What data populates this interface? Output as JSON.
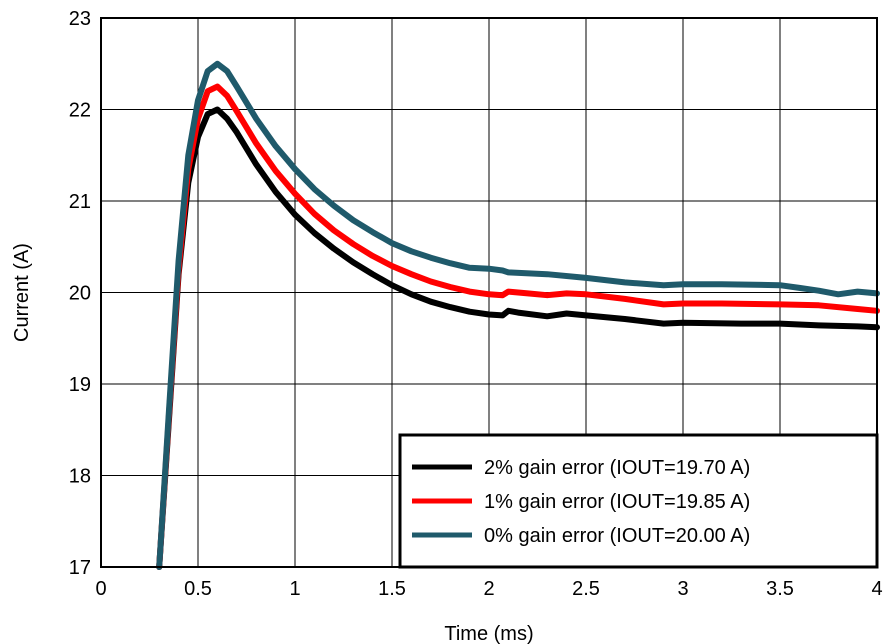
{
  "chart_data": {
    "type": "line",
    "title": "",
    "xlabel": "Time (ms)",
    "ylabel": "Current (A)",
    "xlim": [
      0,
      4
    ],
    "ylim": [
      17,
      23
    ],
    "x_ticks": [
      0,
      0.5,
      1,
      1.5,
      2,
      2.5,
      3,
      3.5,
      4
    ],
    "x_tick_labels": [
      "0",
      "0.5",
      "1",
      "1.5",
      "2",
      "2.5",
      "3",
      "3.5",
      "4"
    ],
    "y_ticks": [
      17,
      18,
      19,
      20,
      21,
      22,
      23
    ],
    "y_tick_labels": [
      "17",
      "18",
      "19",
      "20",
      "21",
      "22",
      "23"
    ],
    "grid": true,
    "legend_position": "bottom-right",
    "series": [
      {
        "name": "2% gain error (IOUT=19.70 A)",
        "color": "#000000",
        "points": [
          [
            0.3,
            17.0
          ],
          [
            0.35,
            18.6
          ],
          [
            0.4,
            20.2
          ],
          [
            0.45,
            21.2
          ],
          [
            0.5,
            21.7
          ],
          [
            0.55,
            21.95
          ],
          [
            0.6,
            22.0
          ],
          [
            0.65,
            21.9
          ],
          [
            0.7,
            21.75
          ],
          [
            0.8,
            21.4
          ],
          [
            0.9,
            21.1
          ],
          [
            1.0,
            20.85
          ],
          [
            1.1,
            20.65
          ],
          [
            1.2,
            20.48
          ],
          [
            1.3,
            20.33
          ],
          [
            1.4,
            20.2
          ],
          [
            1.5,
            20.08
          ],
          [
            1.6,
            19.98
          ],
          [
            1.7,
            19.9
          ],
          [
            1.8,
            19.84
          ],
          [
            1.9,
            19.79
          ],
          [
            2.0,
            19.76
          ],
          [
            2.07,
            19.75
          ],
          [
            2.1,
            19.8
          ],
          [
            2.15,
            19.78
          ],
          [
            2.3,
            19.74
          ],
          [
            2.4,
            19.77
          ],
          [
            2.5,
            19.75
          ],
          [
            2.7,
            19.71
          ],
          [
            2.9,
            19.66
          ],
          [
            3.0,
            19.67
          ],
          [
            3.3,
            19.66
          ],
          [
            3.5,
            19.66
          ],
          [
            3.7,
            19.64
          ],
          [
            3.9,
            19.63
          ],
          [
            4.0,
            19.62
          ]
        ]
      },
      {
        "name": "1% gain error (IOUT=19.85 A)",
        "color": "#ff0000",
        "points": [
          [
            0.3,
            17.0
          ],
          [
            0.35,
            18.65
          ],
          [
            0.4,
            20.25
          ],
          [
            0.45,
            21.35
          ],
          [
            0.5,
            21.9
          ],
          [
            0.55,
            22.2
          ],
          [
            0.6,
            22.25
          ],
          [
            0.65,
            22.15
          ],
          [
            0.7,
            21.98
          ],
          [
            0.8,
            21.63
          ],
          [
            0.9,
            21.33
          ],
          [
            1.0,
            21.08
          ],
          [
            1.1,
            20.86
          ],
          [
            1.2,
            20.68
          ],
          [
            1.3,
            20.53
          ],
          [
            1.4,
            20.4
          ],
          [
            1.5,
            20.29
          ],
          [
            1.6,
            20.2
          ],
          [
            1.7,
            20.12
          ],
          [
            1.8,
            20.06
          ],
          [
            1.9,
            20.01
          ],
          [
            2.0,
            19.98
          ],
          [
            2.07,
            19.97
          ],
          [
            2.1,
            20.01
          ],
          [
            2.2,
            19.99
          ],
          [
            2.3,
            19.97
          ],
          [
            2.4,
            19.99
          ],
          [
            2.5,
            19.98
          ],
          [
            2.7,
            19.93
          ],
          [
            2.9,
            19.87
          ],
          [
            3.0,
            19.88
          ],
          [
            3.2,
            19.88
          ],
          [
            3.5,
            19.87
          ],
          [
            3.7,
            19.86
          ],
          [
            3.9,
            19.82
          ],
          [
            4.0,
            19.8
          ]
        ]
      },
      {
        "name": "0% gain error (IOUT=20.00 A)",
        "color": "#1f5a6b",
        "points": [
          [
            0.3,
            17.0
          ],
          [
            0.35,
            18.7
          ],
          [
            0.4,
            20.35
          ],
          [
            0.45,
            21.5
          ],
          [
            0.5,
            22.1
          ],
          [
            0.55,
            22.42
          ],
          [
            0.6,
            22.5
          ],
          [
            0.65,
            22.42
          ],
          [
            0.7,
            22.25
          ],
          [
            0.8,
            21.9
          ],
          [
            0.9,
            21.6
          ],
          [
            1.0,
            21.35
          ],
          [
            1.1,
            21.13
          ],
          [
            1.2,
            20.95
          ],
          [
            1.3,
            20.79
          ],
          [
            1.4,
            20.66
          ],
          [
            1.5,
            20.54
          ],
          [
            1.6,
            20.45
          ],
          [
            1.7,
            20.38
          ],
          [
            1.8,
            20.32
          ],
          [
            1.9,
            20.27
          ],
          [
            2.0,
            20.26
          ],
          [
            2.07,
            20.24
          ],
          [
            2.1,
            20.22
          ],
          [
            2.3,
            20.2
          ],
          [
            2.5,
            20.16
          ],
          [
            2.7,
            20.11
          ],
          [
            2.9,
            20.08
          ],
          [
            3.0,
            20.09
          ],
          [
            3.2,
            20.09
          ],
          [
            3.5,
            20.08
          ],
          [
            3.6,
            20.05
          ],
          [
            3.7,
            20.02
          ],
          [
            3.8,
            19.98
          ],
          [
            3.9,
            20.01
          ],
          [
            4.0,
            19.99
          ]
        ]
      }
    ]
  }
}
